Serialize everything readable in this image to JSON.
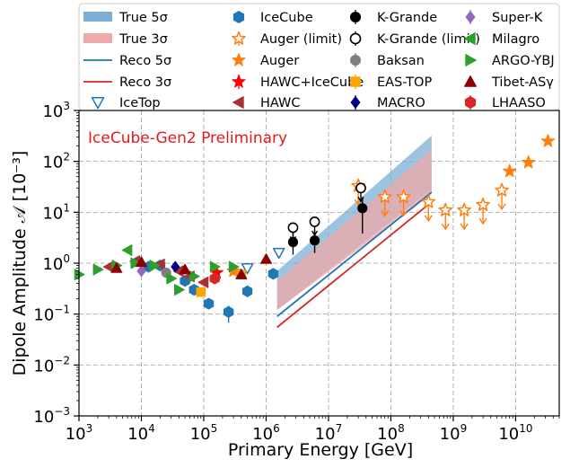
{
  "chart_data": {
    "type": "scatter",
    "title": "",
    "annotation": "IceCube-Gen2 Preliminary",
    "xlabel": "Primary Energy [GeV]",
    "ylabel": "Dipole Amplitude 𝒜 [10⁻³]",
    "xscale": "log",
    "yscale": "log",
    "xlim": [
      1000,
      50000000000
    ],
    "ylim": [
      0.001,
      1000
    ],
    "grid": true,
    "legend_position": "top (outside, 4 columns)",
    "x_tick_labels": [
      {
        "base": "10",
        "exp": "3"
      },
      {
        "base": "10",
        "exp": "4"
      },
      {
        "base": "10",
        "exp": "5"
      },
      {
        "base": "10",
        "exp": "6"
      },
      {
        "base": "10",
        "exp": "7"
      },
      {
        "base": "10",
        "exp": "8"
      },
      {
        "base": "10",
        "exp": "9"
      },
      {
        "base": "10",
        "exp": "10"
      }
    ],
    "y_tick_labels": [
      {
        "base": "10",
        "exp": "−3"
      },
      {
        "base": "10",
        "exp": "−2"
      },
      {
        "base": "10",
        "exp": "−1"
      },
      {
        "base": "10",
        "exp": "0"
      },
      {
        "base": "10",
        "exp": "1"
      },
      {
        "base": "10",
        "exp": "2"
      },
      {
        "base": "10",
        "exp": "3"
      }
    ],
    "bands": [
      {
        "name": "True 5σ",
        "color": "#7bafd4",
        "x": [
          1500000,
          450000000
        ],
        "low": [
          0.12,
          28
        ],
        "high": [
          0.7,
          320
        ]
      },
      {
        "name": "True 3σ",
        "color": "#f0a8a8",
        "x": [
          1500000,
          450000000
        ],
        "low": [
          0.12,
          22
        ],
        "high": [
          0.45,
          170
        ]
      }
    ],
    "lines": [
      {
        "name": "Reco 5σ",
        "color": "#1f77b4",
        "x": [
          1500000,
          450000000
        ],
        "y": [
          0.09,
          25
        ]
      },
      {
        "name": "Reco 3σ",
        "color": "#d62728",
        "x": [
          1500000,
          450000000
        ],
        "y": [
          0.055,
          16
        ]
      }
    ],
    "series": [
      {
        "name": "IceCube",
        "marker": "hexagon",
        "color": "#1f77b4",
        "points": [
          [
            13000,
            0.85
          ],
          [
            20000,
            0.9
          ],
          [
            50000,
            0.45
          ],
          [
            70000,
            0.3
          ],
          [
            120000,
            0.16
          ],
          [
            250000,
            0.11
          ],
          [
            500000,
            0.28
          ],
          [
            1300000,
            0.62
          ]
        ]
      },
      {
        "name": "IceTop",
        "marker": "triangle-down-open",
        "color": "#1f77b4",
        "points": [
          [
            500000,
            0.8
          ],
          [
            1600000,
            1.6
          ]
        ]
      },
      {
        "name": "Auger (limit)",
        "marker": "star-open",
        "color": "#ff7f0e",
        "points": [
          [
            30000000,
            33
          ],
          [
            80000000,
            20
          ],
          [
            160000000,
            20
          ],
          [
            400000000,
            16
          ],
          [
            750000000,
            11
          ],
          [
            1500000000,
            11
          ],
          [
            3000000000,
            14
          ],
          [
            6000000000,
            27
          ]
        ]
      },
      {
        "name": "Auger",
        "marker": "star",
        "color": "#ff7f0e",
        "points": [
          [
            8000000000,
            64
          ],
          [
            16000000000,
            95
          ],
          [
            33000000000,
            250
          ],
          [
            300000,
            0.7
          ]
        ]
      },
      {
        "name": "HAWC+IceCube",
        "marker": "star",
        "color": "#ff0000",
        "points": [
          [
            160000,
            0.65
          ]
        ]
      },
      {
        "name": "HAWC",
        "marker": "triangle-left",
        "color": "#a83232",
        "points": [
          [
            3000,
            0.85
          ],
          [
            8000,
            1.1
          ],
          [
            20000,
            0.95
          ],
          [
            40000,
            0.7
          ],
          [
            60000,
            0.55
          ],
          [
            100000,
            0.42
          ]
        ]
      },
      {
        "name": "K-Grande",
        "marker": "circle",
        "color": "#000000",
        "points": [
          [
            2700000,
            2.6
          ],
          [
            6000000,
            2.8
          ],
          [
            35000000,
            12
          ]
        ]
      },
      {
        "name": "K-Grande (limit)",
        "marker": "circle-open",
        "color": "#000000",
        "points": [
          [
            2700000,
            5
          ],
          [
            6000000,
            6.5
          ],
          [
            33000000,
            30
          ]
        ]
      },
      {
        "name": "Baksan",
        "marker": "circle",
        "color": "#7f7f7f",
        "points": [
          [
            25000,
            0.65
          ]
        ]
      },
      {
        "name": "EAS-TOP",
        "marker": "square",
        "color": "#ffa500",
        "points": [
          [
            90000,
            0.27
          ],
          [
            400000,
            0.6
          ]
        ]
      },
      {
        "name": "MACRO",
        "marker": "diamond",
        "color": "#00008b",
        "points": [
          [
            35000,
            0.85
          ]
        ]
      },
      {
        "name": "Super-K",
        "marker": "diamond",
        "color": "#9467bd",
        "points": [
          [
            10000,
            0.7
          ]
        ]
      },
      {
        "name": "Milagro",
        "marker": "triangle-left",
        "color": "#2ca02c",
        "points": [
          [
            6000,
            1.8
          ]
        ]
      },
      {
        "name": "ARGO-YBJ",
        "marker": "triangle-right",
        "color": "#2ca02c",
        "points": [
          [
            1000,
            0.6
          ],
          [
            2000,
            0.75
          ],
          [
            4000,
            0.9
          ],
          [
            8000,
            1.0
          ],
          [
            16000,
            0.9
          ],
          [
            30000,
            0.5
          ],
          [
            40000,
            0.3
          ],
          [
            70000,
            0.55
          ],
          [
            150000,
            0.85
          ],
          [
            300000,
            0.85
          ]
        ]
      },
      {
        "name": "Tibet-ASγ",
        "marker": "triangle-up",
        "color": "#8b0000",
        "points": [
          [
            4000,
            0.8
          ],
          [
            10000,
            1.05
          ],
          [
            50000,
            0.75
          ],
          [
            400000,
            0.6
          ],
          [
            1000000,
            1.2
          ]
        ]
      },
      {
        "name": "LHAASO",
        "marker": "hexagon",
        "color": "#d62728",
        "points": [
          [
            150000,
            0.5
          ]
        ]
      }
    ]
  },
  "legend": {
    "items": [
      {
        "label": "True 5σ",
        "type": "band",
        "color": "#7bafd4"
      },
      {
        "label": "IceCube",
        "type": "hexagon",
        "color": "#1f77b4"
      },
      {
        "label": "K-Grande",
        "type": "circle-err",
        "color": "#000000"
      },
      {
        "label": "Super-K",
        "type": "diamond-err",
        "color": "#9467bd"
      },
      {
        "label": "True 3σ",
        "type": "band",
        "color": "#f0a8a8"
      },
      {
        "label": "Auger (limit)",
        "type": "star-open-err",
        "color": "#ff7f0e"
      },
      {
        "label": "K-Grande (limit)",
        "type": "circle-open-err",
        "color": "#000000"
      },
      {
        "label": "Milagro",
        "type": "triangle-left",
        "color": "#2ca02c"
      },
      {
        "label": "Reco 5σ",
        "type": "line",
        "color": "#1f77b4"
      },
      {
        "label": "Auger",
        "type": "star",
        "color": "#ff7f0e"
      },
      {
        "label": "Baksan",
        "type": "circle-err",
        "color": "#7f7f7f"
      },
      {
        "label": "ARGO-YBJ",
        "type": "triangle-right",
        "color": "#2ca02c"
      },
      {
        "label": "Reco 3σ",
        "type": "line",
        "color": "#d62728"
      },
      {
        "label": "HAWC+IceCube",
        "type": "star-err",
        "color": "#ff0000"
      },
      {
        "label": "EAS-TOP",
        "type": "square-err",
        "color": "#ffa500"
      },
      {
        "label": "Tibet-ASγ",
        "type": "triangle-up",
        "color": "#8b0000"
      },
      {
        "label": "IceTop",
        "type": "triangle-down-open",
        "color": "#1f77b4"
      },
      {
        "label": "HAWC",
        "type": "triangle-left",
        "color": "#a83232"
      },
      {
        "label": "MACRO",
        "type": "diamond-err",
        "color": "#00008b"
      },
      {
        "label": "LHAASO",
        "type": "hexagon-err",
        "color": "#d62728"
      }
    ]
  }
}
